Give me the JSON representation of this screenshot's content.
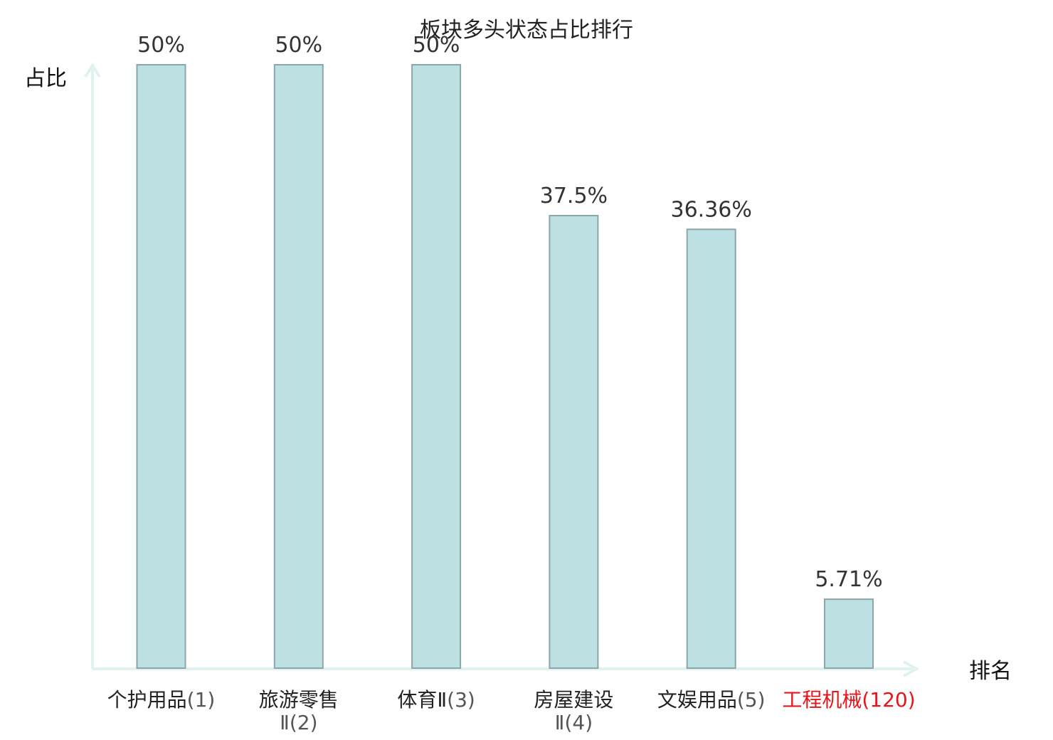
{
  "chart_data": {
    "type": "bar",
    "title": "板块多头状态占比排行",
    "ylabel": "占比",
    "xlabel": "排名",
    "ylim": [
      0,
      50
    ],
    "grid": false,
    "categories": [
      {
        "name": "个护用品",
        "rank": "(1)",
        "highlight": false
      },
      {
        "name": "旅游零售",
        "rank": "Ⅱ(2)",
        "highlight": false
      },
      {
        "name": "体育Ⅱ",
        "rank": "(3)",
        "highlight": false
      },
      {
        "name": "房屋建设",
        "rank": "Ⅱ(4)",
        "highlight": false
      },
      {
        "name": "文娱用品",
        "rank": "(5)",
        "highlight": false
      },
      {
        "name": "工程机械",
        "rank": "(120)",
        "highlight": true
      }
    ],
    "values": [
      50,
      50,
      50,
      37.5,
      36.36,
      5.71
    ],
    "value_labels": [
      "50%",
      "50%",
      "50%",
      "37.5%",
      "36.36%",
      "5.71%"
    ]
  },
  "colors": {
    "bar_fill": "#bde1e3",
    "bar_stroke": "#8ba6a8",
    "axis": "#dff2f0",
    "highlight": "#e8141b",
    "text": "#222222",
    "rank_text": "#555555"
  }
}
